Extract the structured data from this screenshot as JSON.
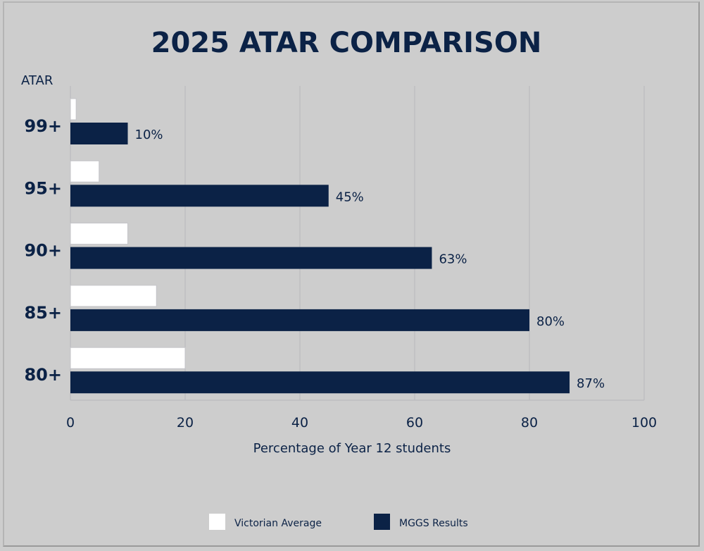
{
  "chart_data": {
    "type": "bar",
    "orientation": "horizontal",
    "title": "2025 ATAR COMPARISON",
    "ylabel": "ATAR",
    "xlabel": "Percentage of Year 12 students",
    "categories": [
      "99+",
      "95+",
      "90+",
      "85+",
      "80+"
    ],
    "series": [
      {
        "name": "Victorian Average",
        "color": "#ffffff",
        "values": [
          1,
          5,
          10,
          15,
          20
        ]
      },
      {
        "name": "MGGS Results",
        "color": "#0b2246",
        "values": [
          10,
          45,
          63,
          80,
          87
        ],
        "data_labels": [
          "10%",
          "45%",
          "63%",
          "80%",
          "87%"
        ]
      }
    ],
    "xlim": [
      0,
      100
    ],
    "xticks": [
      "0",
      "20",
      "40",
      "60",
      "80",
      "100"
    ],
    "grid": true,
    "legend_position": "bottom"
  }
}
